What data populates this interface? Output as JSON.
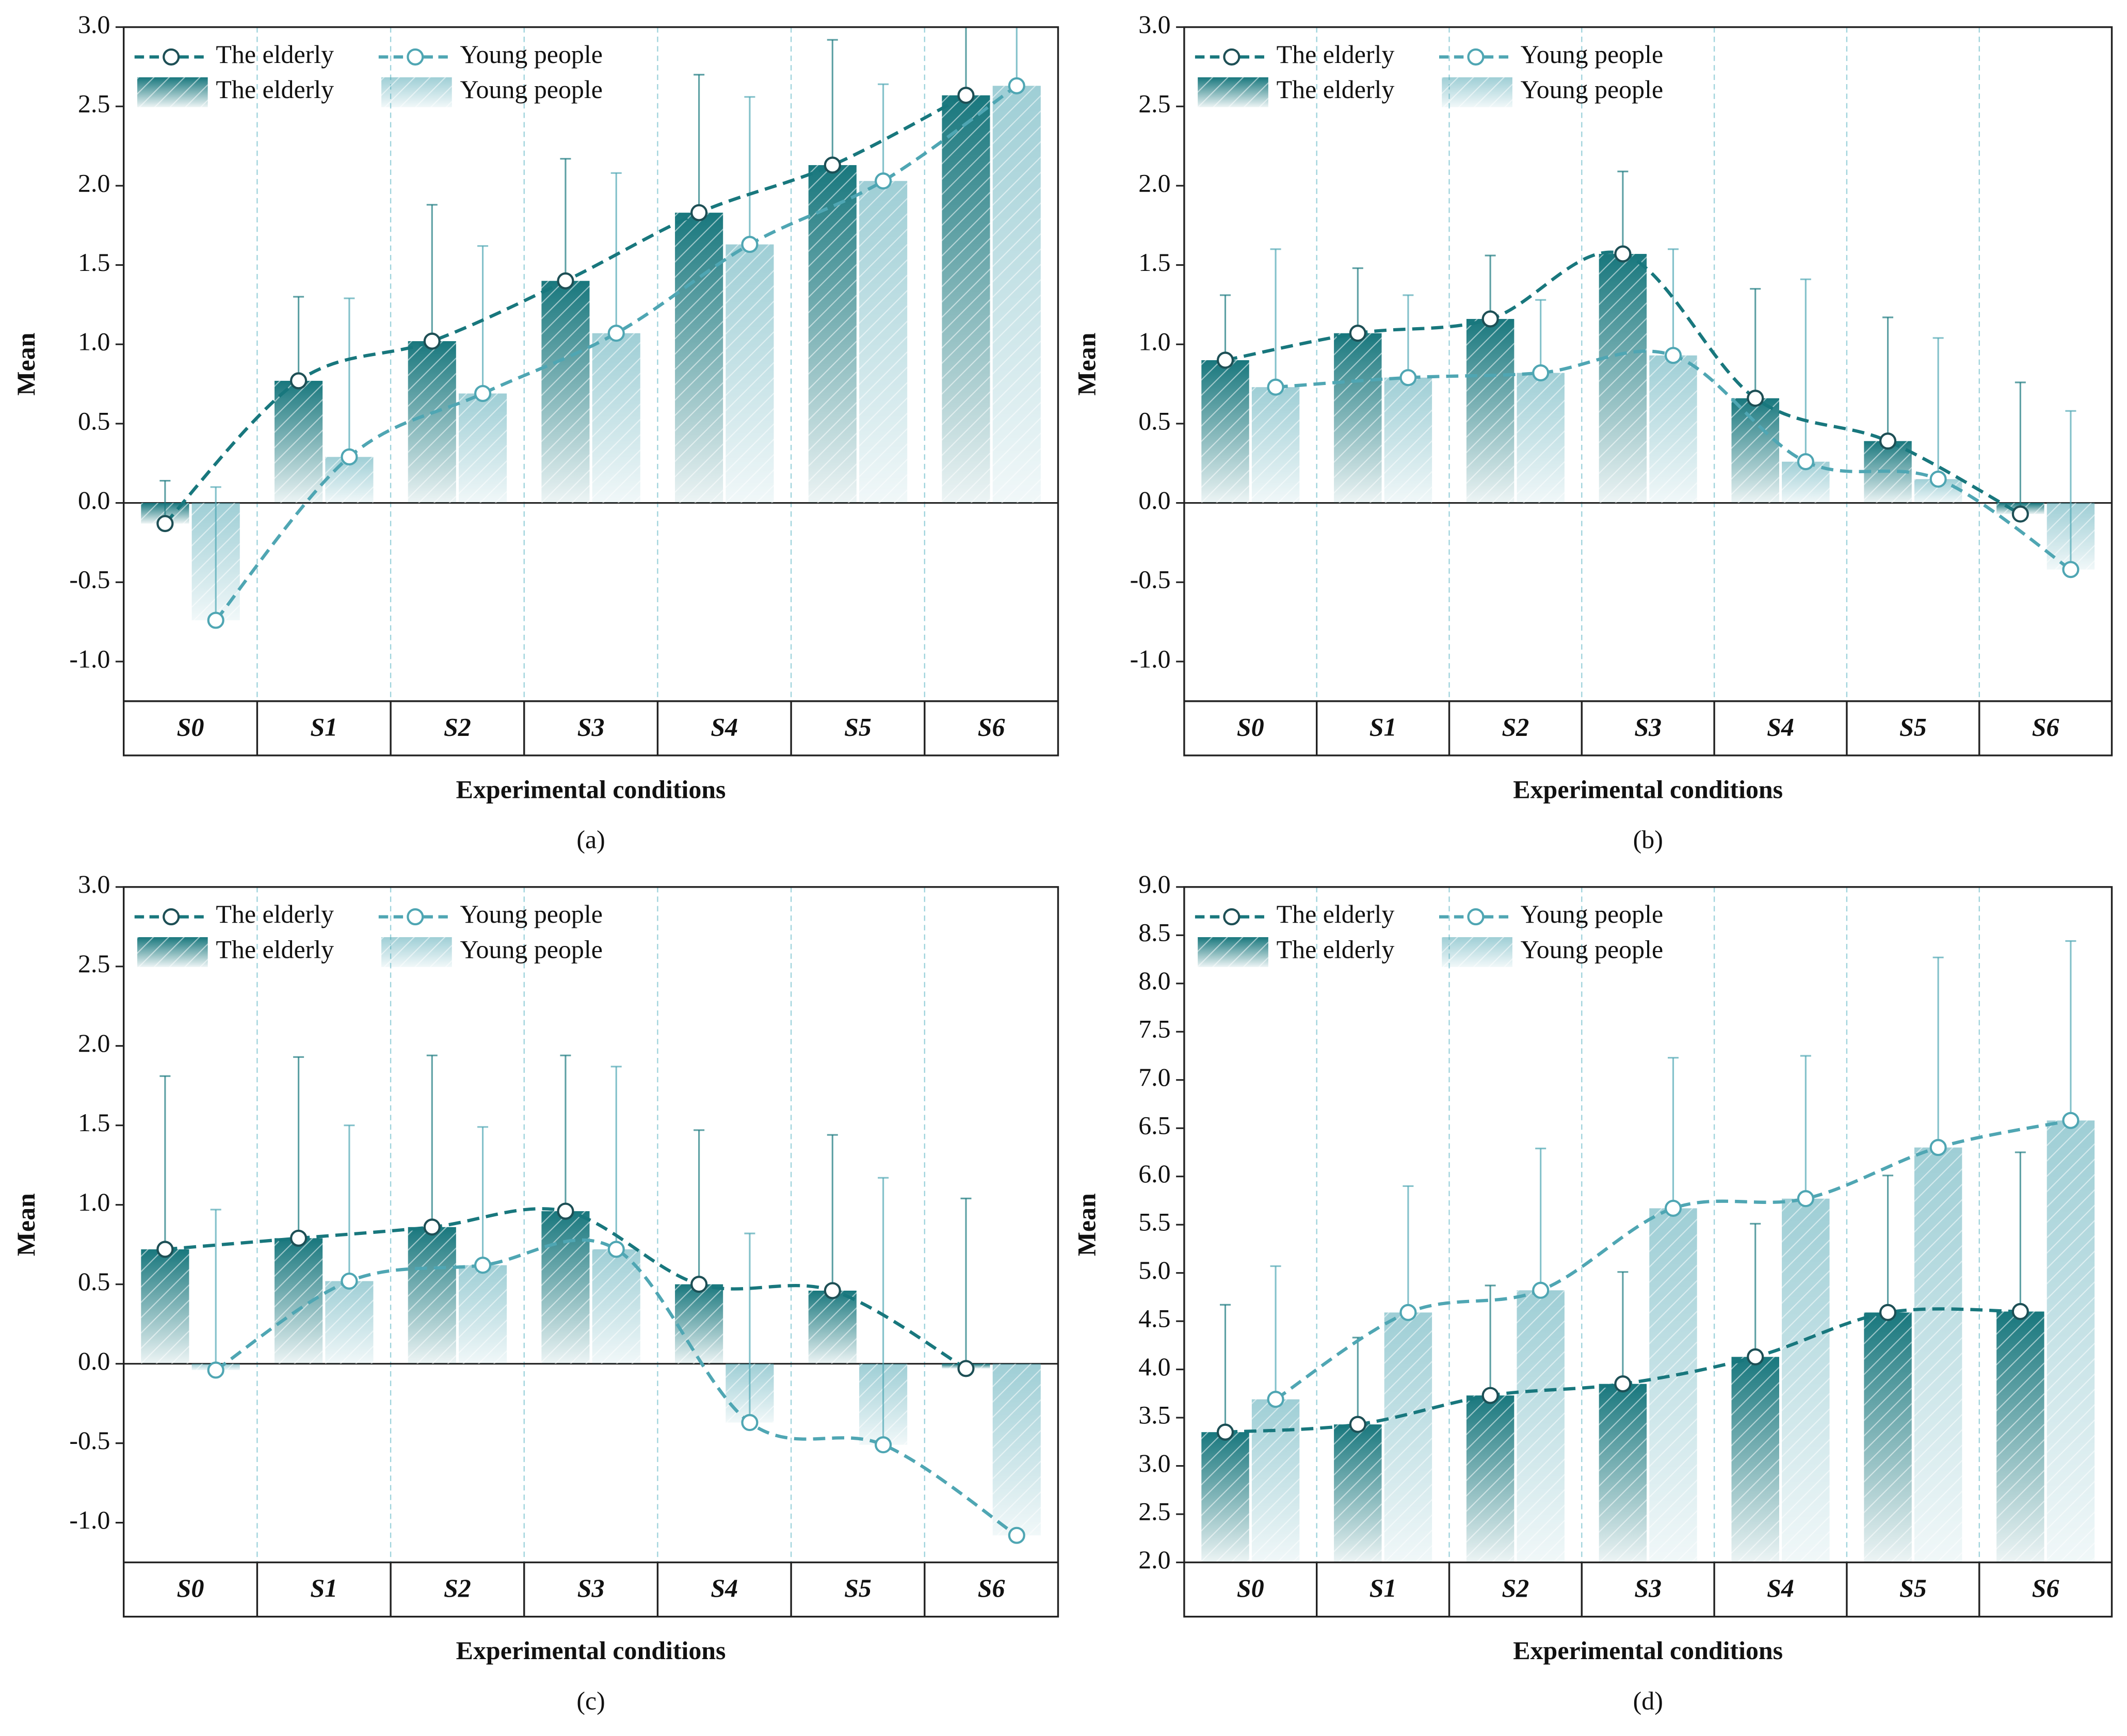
{
  "chart_data": [
    {
      "type": "bar",
      "panel_label": "(a)",
      "x_label": "Experimental conditions",
      "y_label": "Mean",
      "categories": [
        "S0",
        "S1",
        "S2",
        "S3",
        "S4",
        "S5",
        "S6"
      ],
      "series": [
        {
          "name": "The elderly",
          "color": "#18777d",
          "values": [
            -0.13,
            0.77,
            1.02,
            1.4,
            1.83,
            2.13,
            2.57
          ],
          "errors": [
            0.27,
            0.53,
            0.86,
            0.77,
            0.87,
            0.79,
            0.53
          ]
        },
        {
          "name": "Young people",
          "color": "#4fa6b3",
          "values": [
            -0.74,
            0.29,
            0.69,
            1.07,
            1.63,
            2.03,
            2.63
          ],
          "errors": [
            0.84,
            1.0,
            0.93,
            1.01,
            0.93,
            0.61,
            0.5
          ]
        }
      ],
      "ylim": [
        -1.25,
        3
      ],
      "yticks": [
        {
          "value": -1,
          "label": "-1.0"
        },
        {
          "value": -0.5,
          "label": "-0.5"
        },
        {
          "value": 0,
          "label": "0.0"
        },
        0.5,
        {
          "value": 1,
          "label": "1.0"
        },
        1.5,
        {
          "value": 2,
          "label": "2.0"
        },
        2.5,
        {
          "value": 3,
          "label": "3.0"
        }
      ]
    },
    {
      "type": "bar",
      "panel_label": "(b)",
      "x_label": "Experimental conditions",
      "y_label": "Mean",
      "categories": [
        "S0",
        "S1",
        "S2",
        "S3",
        "S4",
        "S5",
        "S6"
      ],
      "series": [
        {
          "name": "The elderly",
          "color": "#18777d",
          "values": [
            0.9,
            1.07,
            1.16,
            1.57,
            0.66,
            0.39,
            -0.07
          ],
          "errors": [
            0.41,
            0.41,
            0.4,
            0.52,
            0.69,
            0.78,
            0.83
          ]
        },
        {
          "name": "Young people",
          "color": "#4fa6b3",
          "values": [
            0.73,
            0.79,
            0.82,
            0.93,
            0.26,
            0.15,
            -0.42
          ],
          "errors": [
            0.87,
            0.52,
            0.46,
            0.67,
            1.15,
            0.89,
            1.0
          ]
        }
      ],
      "ylim": [
        -1.25,
        3
      ],
      "yticks": [
        {
          "value": -1,
          "label": "-1.0"
        },
        {
          "value": -0.5,
          "label": "-0.5"
        },
        {
          "value": 0,
          "label": "0.0"
        },
        0.5,
        {
          "value": 1,
          "label": "1.0"
        },
        1.5,
        {
          "value": 2,
          "label": "2.0"
        },
        2.5,
        {
          "value": 3,
          "label": "3.0"
        }
      ]
    },
    {
      "type": "bar",
      "panel_label": "(c)",
      "x_label": "Experimental conditions",
      "y_label": "Mean",
      "categories": [
        "S0",
        "S1",
        "S2",
        "S3",
        "S4",
        "S5",
        "S6"
      ],
      "series": [
        {
          "name": "The elderly",
          "color": "#18777d",
          "values": [
            0.72,
            0.79,
            0.86,
            0.96,
            0.5,
            0.46,
            -0.03
          ],
          "errors": [
            1.09,
            1.14,
            1.08,
            0.98,
            0.97,
            0.98,
            1.07
          ]
        },
        {
          "name": "Young people",
          "color": "#4fa6b3",
          "values": [
            -0.04,
            0.52,
            0.62,
            0.72,
            -0.37,
            -0.51,
            -1.08
          ],
          "errors": [
            1.01,
            0.98,
            0.87,
            1.15,
            1.19,
            1.68,
            null
          ]
        }
      ],
      "ylim": [
        -1.25,
        3
      ],
      "yticks": [
        {
          "value": -1,
          "label": "-1.0"
        },
        {
          "value": -0.5,
          "label": "-0.5"
        },
        {
          "value": 0,
          "label": "0.0"
        },
        0.5,
        {
          "value": 1,
          "label": "1.0"
        },
        1.5,
        {
          "value": 2,
          "label": "2.0"
        },
        2.5,
        {
          "value": 3,
          "label": "3.0"
        }
      ]
    },
    {
      "type": "bar",
      "panel_label": "(d)",
      "x_label": "Experimental conditions",
      "y_label": "Mean",
      "categories": [
        "S0",
        "S1",
        "S2",
        "S3",
        "S4",
        "S5",
        "S6"
      ],
      "series": [
        {
          "name": "The elderly",
          "color": "#18777d",
          "values": [
            3.35,
            3.43,
            3.73,
            3.85,
            4.13,
            4.59,
            4.6
          ],
          "errors": [
            1.32,
            0.9,
            1.14,
            1.16,
            1.38,
            1.42,
            1.65
          ]
        },
        {
          "name": "Young people",
          "color": "#4fa6b3",
          "values": [
            3.69,
            4.59,
            4.82,
            5.67,
            5.77,
            6.3,
            6.58
          ],
          "errors": [
            1.38,
            1.31,
            1.47,
            1.56,
            1.48,
            1.97,
            1.86
          ]
        }
      ],
      "ylim": [
        2,
        9
      ],
      "yticks": [
        {
          "value": 2,
          "label": "2.0"
        },
        2.5,
        {
          "value": 3,
          "label": "3.0"
        },
        3.5,
        {
          "value": 4,
          "label": "4.0"
        },
        4.5,
        {
          "value": 5,
          "label": "5.0"
        },
        5.5,
        {
          "value": 6,
          "label": "6.0"
        },
        6.5,
        {
          "value": 7,
          "label": "7.0"
        },
        7.5,
        {
          "value": 8,
          "label": "8.0"
        },
        8.5,
        {
          "value": 9,
          "label": "9.0"
        }
      ]
    }
  ]
}
